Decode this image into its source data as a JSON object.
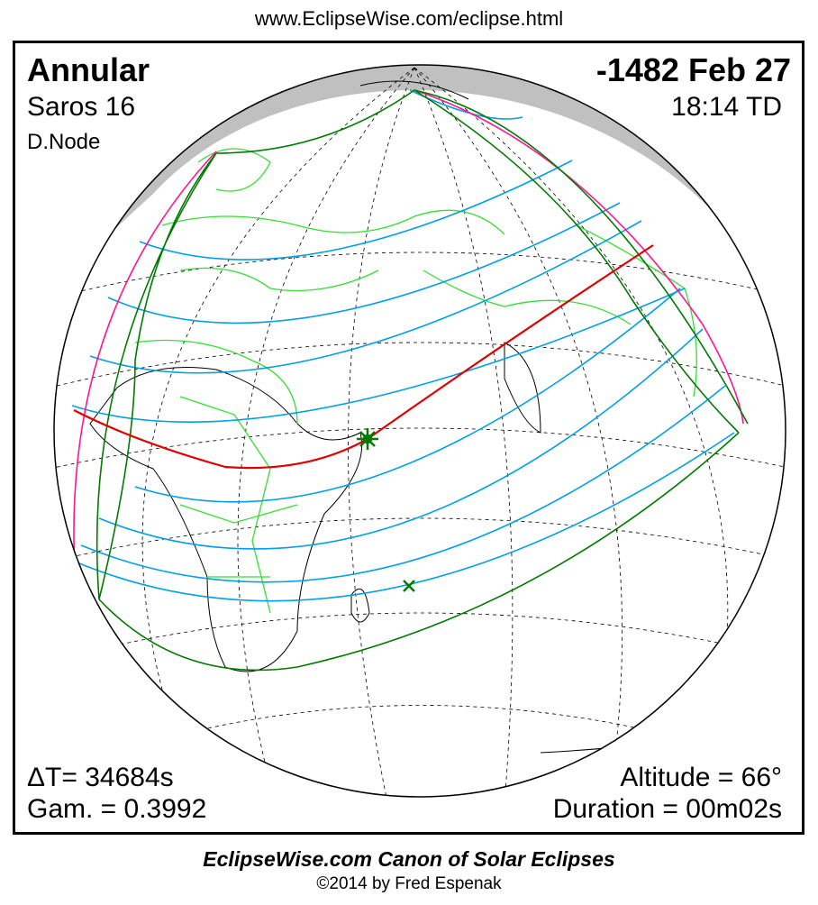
{
  "header": {
    "url": "www.EclipseWise.com/eclipse.html"
  },
  "eclipse": {
    "type": "Annular",
    "date": "-1482 Feb 27",
    "saros": "Saros  16",
    "time": "18:14 TD",
    "node": "D.Node",
    "delta_t": "ΔT=  34684s",
    "gamma": "Gam. = 0.3992",
    "altitude": "Altitude = 66°",
    "duration": "Duration = 00m02s"
  },
  "colors": {
    "central_line": "#e00000",
    "limits": "#007a00",
    "hourly_lines": "#00a0e8",
    "rise_set_limits": "#ff1493",
    "borders": "#33e033",
    "night_cap": "#c0c0c0"
  },
  "markers": {
    "greatest_eclipse": "star-icon",
    "greatest_duration": "x-icon"
  },
  "footer": {
    "title": "EclipseWise.com Canon of Solar Eclipses",
    "copyright": "©2014 by Fred Espenak"
  }
}
